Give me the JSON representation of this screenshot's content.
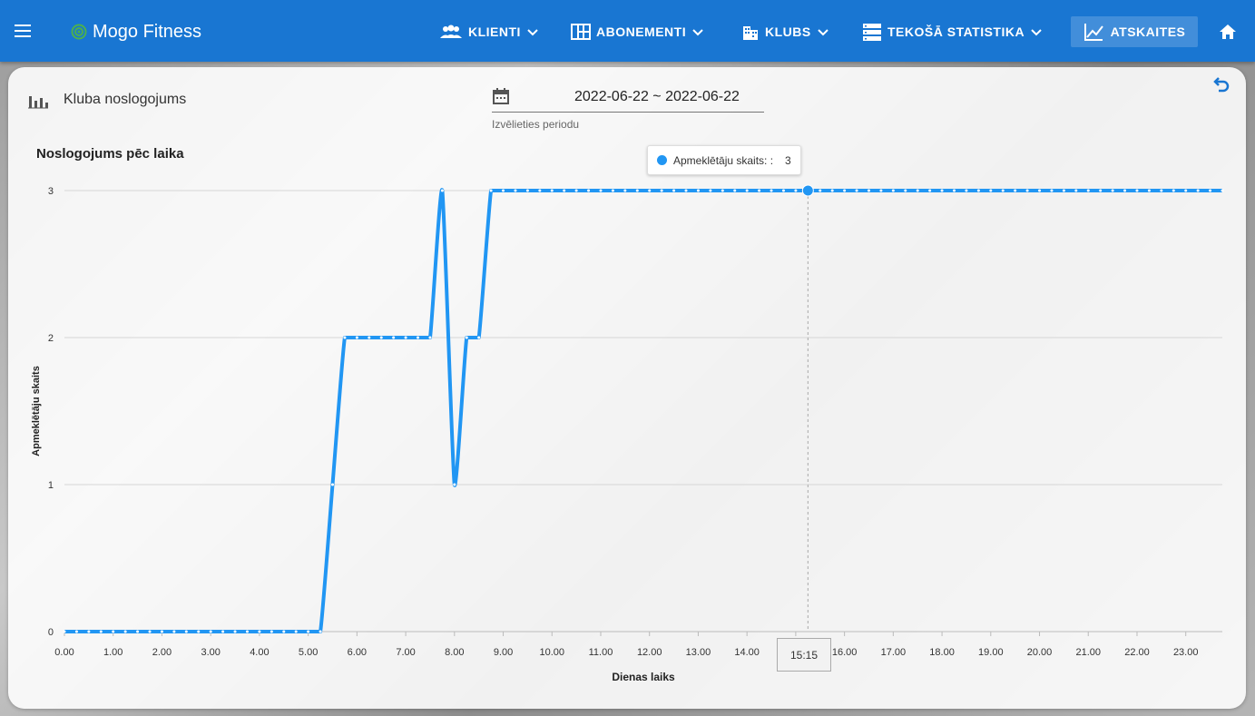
{
  "app": {
    "brand": "Mogo Fitness"
  },
  "nav": {
    "items": [
      {
        "label": "KLIENTI",
        "icon": "people-icon"
      },
      {
        "label": "ABONEMENTI",
        "icon": "grid-icon"
      },
      {
        "label": "KLUBS",
        "icon": "building-icon"
      },
      {
        "label": "TEKOŠĀ STATISTIKA",
        "icon": "storage-icon"
      }
    ],
    "active": {
      "label": "ATSKAITES",
      "icon": "chart-line-icon"
    },
    "home_icon": "home-icon",
    "menu_icon": "menu-icon"
  },
  "report": {
    "title": "Kluba noslogojums",
    "date_range": "2022-06-22 ~ 2022-06-22",
    "date_hint": "Izvēlieties periodu",
    "chart_title": "Noslogojums pēc laika",
    "tooltip_label": "Apmeklētāju skaits: :",
    "tooltip_value": "3",
    "cursor_time": "15:15"
  },
  "colors": {
    "primary": "#1976d2",
    "series": "#2196f3"
  },
  "chart_data": {
    "type": "line",
    "title": "Noslogojums pēc laika",
    "xlabel": "Dienas laiks",
    "ylabel": "Apmeklētāju skaits",
    "x_ticks": [
      "0.00",
      "1.00",
      "2.00",
      "3.00",
      "4.00",
      "5.00",
      "6.00",
      "7.00",
      "8.00",
      "9.00",
      "10.00",
      "11.00",
      "12.00",
      "13.00",
      "14.00",
      "15.00",
      "16.00",
      "17.00",
      "18.00",
      "19.00",
      "20.00",
      "21.00",
      "22.00",
      "23.00"
    ],
    "y_ticks": [
      "0",
      "1",
      "2",
      "3"
    ],
    "xlim": [
      0,
      23.75
    ],
    "ylim": [
      0,
      3
    ],
    "grid": true,
    "series": [
      {
        "name": "Apmeklētāju skaits",
        "x": [
          0,
          0.25,
          0.5,
          0.75,
          1,
          1.25,
          1.5,
          1.75,
          2,
          2.25,
          2.5,
          2.75,
          3,
          3.25,
          3.5,
          3.75,
          4,
          4.25,
          4.5,
          4.75,
          5,
          5.25,
          5.5,
          5.75,
          6,
          6.25,
          6.5,
          6.75,
          7,
          7.25,
          7.5,
          7.75,
          8,
          8.25,
          8.5,
          8.75,
          9,
          9.25,
          9.5,
          9.75,
          10,
          10.25,
          10.5,
          10.75,
          11,
          11.25,
          11.5,
          11.75,
          12,
          12.25,
          12.5,
          12.75,
          13,
          13.25,
          13.5,
          13.75,
          14,
          14.25,
          14.5,
          14.75,
          15,
          15.25,
          15.5,
          15.75,
          16,
          16.25,
          16.5,
          16.75,
          17,
          17.25,
          17.5,
          17.75,
          18,
          18.25,
          18.5,
          18.75,
          19,
          19.25,
          19.5,
          19.75,
          20,
          20.25,
          20.5,
          20.75,
          21,
          21.25,
          21.5,
          21.75,
          22,
          22.25,
          22.5,
          22.75,
          23,
          23.25,
          23.5,
          23.75
        ],
        "y": [
          0,
          0,
          0,
          0,
          0,
          0,
          0,
          0,
          0,
          0,
          0,
          0,
          0,
          0,
          0,
          0,
          0,
          0,
          0,
          0,
          0,
          0,
          1,
          2,
          2,
          2,
          2,
          2,
          2,
          2,
          2,
          3,
          1,
          2,
          2,
          3,
          3,
          3,
          3,
          3,
          3,
          3,
          3,
          3,
          3,
          3,
          3,
          3,
          3,
          3,
          3,
          3,
          3,
          3,
          3,
          3,
          3,
          3,
          3,
          3,
          3,
          3,
          3,
          3,
          3,
          3,
          3,
          3,
          3,
          3,
          3,
          3,
          3,
          3,
          3,
          3,
          3,
          3,
          3,
          3,
          3,
          3,
          3,
          3,
          3,
          3,
          3,
          3,
          3,
          3,
          3,
          3,
          3,
          3,
          3,
          3
        ]
      }
    ],
    "highlight": {
      "x": 15.25,
      "y": 3
    }
  }
}
